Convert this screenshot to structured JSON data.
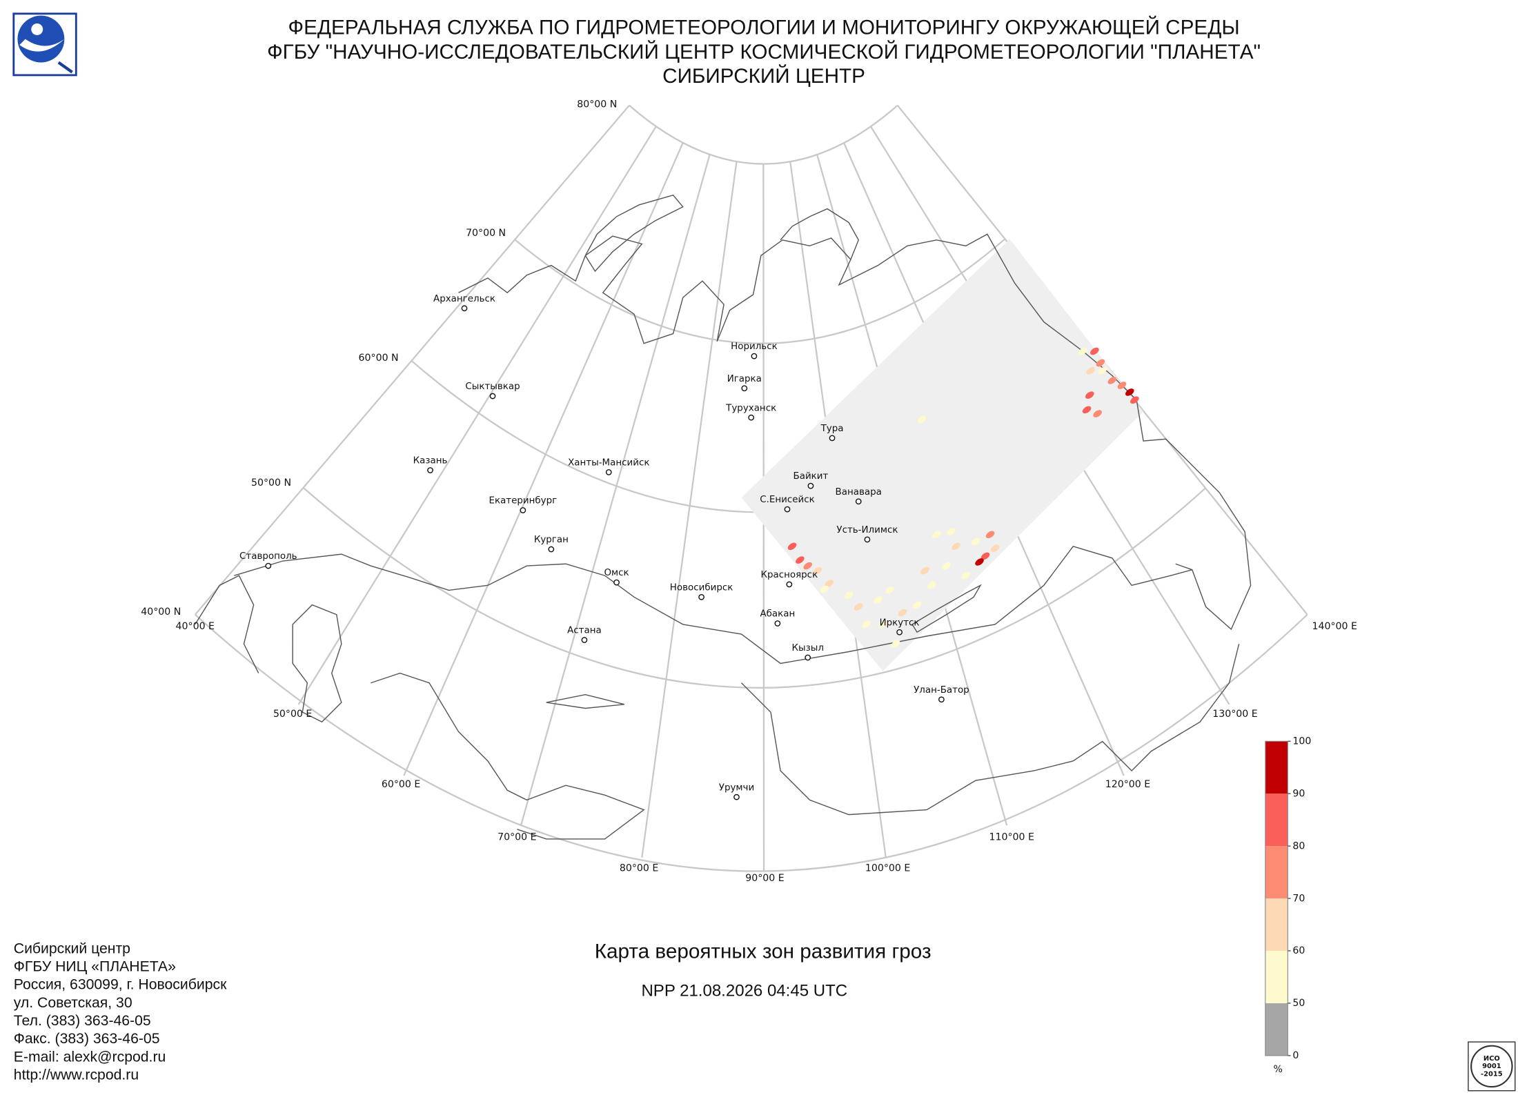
{
  "header": {
    "lines": [
      "ФЕДЕРАЛЬНАЯ СЛУЖБА ПО ГИДРОМЕТЕОРОЛОГИИ И МОНИТОРИНГУ ОКРУЖАЮЩЕЙ СРЕДЫ",
      "ФГБУ \"НАУЧНО-ИССЛЕДОВАТЕЛЬСКИЙ ЦЕНТР КОСМИЧЕСКОЙ ГИДРОМЕТЕОРОЛОГИИ \"ПЛАНЕТА\"",
      "СИБИРСКИЙ ЦЕНТР"
    ]
  },
  "graticule": {
    "latitude_labels": [
      "80°00 N",
      "70°00 N",
      "60°00 N",
      "50°00 N",
      "40°00 N"
    ],
    "longitude_labels": [
      "40°00 E",
      "50°00 E",
      "60°00 E",
      "70°00 E",
      "80°00 E",
      "90°00 E",
      "100°00 E",
      "110°00 E",
      "120°00 E",
      "130°00 E",
      "140°00 E"
    ]
  },
  "cities": [
    "Архангельск",
    "Норильск",
    "Игарка",
    "Туруханск",
    "Сыктывкар",
    "Тура",
    "Казань",
    "Ханты-Мансийск",
    "Байкит",
    "Ванавара",
    "С.Енисейск",
    "Екатеринбург",
    "Усть-Илимск",
    "Курган",
    "Ставрополь",
    "Омск",
    "Красноярск",
    "Новосибирск",
    "Абакан",
    "Астана",
    "Иркутск",
    "Кызыл",
    "Улан-Батор",
    "Урумчи"
  ],
  "title": "Карта вероятных зон развития гроз",
  "subtitle": "NPP 21.08.2026  04:45 UTC",
  "colorbar": {
    "ticks": [
      0,
      50,
      60,
      70,
      80,
      90,
      100
    ],
    "colors": [
      "#a6a6a6",
      "#fffacd",
      "#fdd9b5",
      "#fc8b73",
      "#fa5f5a",
      "#c00000"
    ],
    "unit": "%"
  },
  "footer": {
    "lines": [
      "Сибирский центр",
      "ФГБУ НИЦ «ПЛАНЕТА»",
      "Россия, 630099, г. Новосибирск",
      "ул. Советская, 30",
      "Тел. (383) 363-46-05",
      "Факс. (383) 363-46-05",
      "E-mail: alexk@rcpod.ru",
      "http://www.rcpod.ru"
    ]
  },
  "iso_logo": {
    "lines": [
      "ИСО",
      "9001",
      "-2015"
    ]
  }
}
